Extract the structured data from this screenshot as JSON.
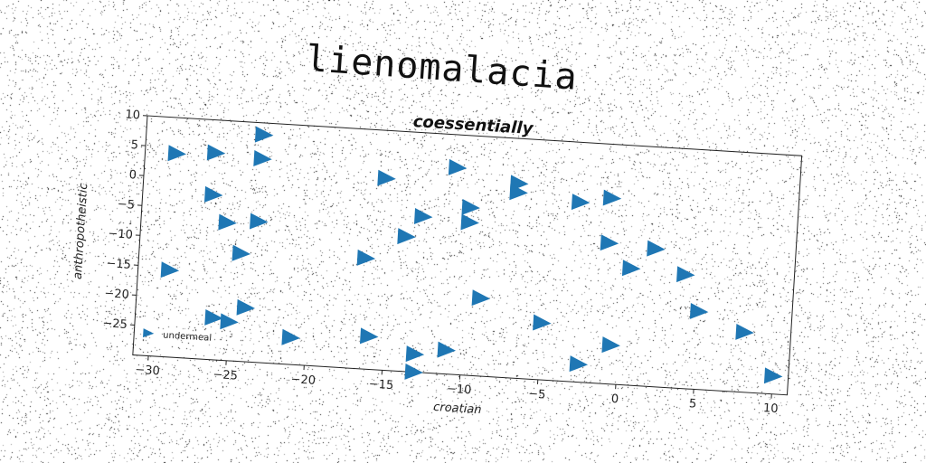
{
  "page_title": "lienomalacia",
  "chart_data": {
    "type": "scatter",
    "title": "coessentially",
    "xlabel": "croatian",
    "ylabel": "anthropotheistic",
    "xlim": [
      -31,
      11
    ],
    "ylim": [
      -30,
      10
    ],
    "xticks": [
      -30,
      -25,
      -20,
      -15,
      -10,
      -5,
      0,
      5,
      10
    ],
    "yticks": [
      10,
      5,
      0,
      -5,
      -10,
      -15,
      -20,
      -25
    ],
    "marker": "triangle-right",
    "color": "#1f77b4",
    "grid": false,
    "legend_position": "lower-left",
    "series": [
      {
        "name": "undermeal",
        "points": [
          [
            -29,
            4
          ],
          [
            -26.5,
            4.5
          ],
          [
            -23.5,
            8
          ],
          [
            -23.5,
            4
          ],
          [
            -26.5,
            -2.5
          ],
          [
            -25.5,
            -7
          ],
          [
            -23.5,
            -6.5
          ],
          [
            -24.5,
            -12
          ],
          [
            -29,
            -15.5
          ],
          [
            -26,
            -23
          ],
          [
            -25,
            -23.5
          ],
          [
            -24,
            -21
          ],
          [
            -21,
            -25.5
          ],
          [
            -16,
            -24.5
          ],
          [
            -16.5,
            -11.5
          ],
          [
            -15.5,
            2
          ],
          [
            -14,
            -7.5
          ],
          [
            -13,
            -4
          ],
          [
            -11,
            4.5
          ],
          [
            -10,
            -2
          ],
          [
            -10,
            -4.5
          ],
          [
            -13,
            -27
          ],
          [
            -13,
            -30
          ],
          [
            -11,
            -26
          ],
          [
            -9,
            -17
          ],
          [
            -7,
            2.5
          ],
          [
            -7,
            1
          ],
          [
            -5,
            -20.5
          ],
          [
            -3,
            0
          ],
          [
            -1,
            1
          ],
          [
            -1,
            -6.5
          ],
          [
            0.5,
            -10.5
          ],
          [
            2,
            -7
          ],
          [
            -2.5,
            -27
          ],
          [
            -0.5,
            -23.5
          ],
          [
            4,
            -11
          ],
          [
            5,
            -17
          ],
          [
            8,
            -20
          ],
          [
            10,
            -27
          ]
        ]
      }
    ]
  }
}
